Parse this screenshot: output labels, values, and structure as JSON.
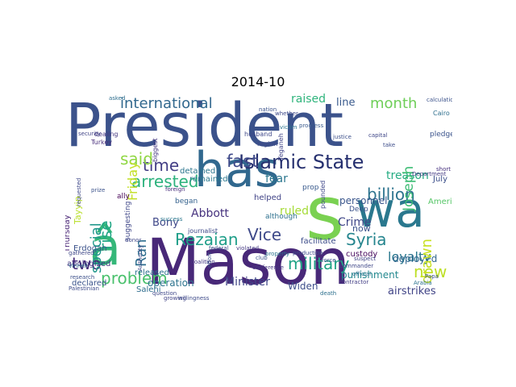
{
  "title": "2014-10",
  "words": [
    {
      "text": "President",
      "color": "#3b528b"
    },
    {
      "text": "has",
      "color": "#31688e"
    },
    {
      "text": "s",
      "color": "#7ad151"
    },
    {
      "text": "wa",
      "color": "#2a788e"
    },
    {
      "text": "â",
      "color": "#35b779"
    },
    {
      "text": "Mason",
      "color": "#482878"
    },
    {
      "text": "Islamic State",
      "color": "#26306f"
    },
    {
      "text": "international",
      "color": "#31688e"
    },
    {
      "text": "month",
      "color": "#6ece58"
    },
    {
      "text": "raised",
      "color": "#2fb47c"
    },
    {
      "text": "line",
      "color": "#38598c"
    },
    {
      "text": "fast",
      "color": "#3e4989"
    },
    {
      "text": "time",
      "color": "#433e85"
    },
    {
      "text": "said",
      "color": "#90d743"
    },
    {
      "text": "arrested",
      "color": "#2db27d"
    },
    {
      "text": "Rezaian",
      "color": "#1f9e89"
    },
    {
      "text": "Vice",
      "color": "#3e4989"
    },
    {
      "text": "problem",
      "color": "#4ac16d"
    },
    {
      "text": "two",
      "color": "#472c7a"
    },
    {
      "text": "military",
      "color": "#20a386"
    },
    {
      "text": "Syria",
      "color": "#25858e"
    },
    {
      "text": "billion",
      "color": "#2c738e"
    },
    {
      "text": "loyalty",
      "color": "#2a788e"
    },
    {
      "text": "new",
      "color": "#bddf26"
    },
    {
      "text": "Crime",
      "color": "#3f4788"
    },
    {
      "text": "treason",
      "color": "#25ac82"
    },
    {
      "text": "personnel",
      "color": "#39558c"
    },
    {
      "text": "Minister",
      "color": "#404688"
    },
    {
      "text": "operation",
      "color": "#2c738e"
    },
    {
      "text": "Abbott",
      "color": "#46327e"
    },
    {
      "text": "Bony",
      "color": "#3f4889"
    },
    {
      "text": "ruled",
      "color": "#a5db36"
    },
    {
      "text": "deployed",
      "color": "#31668e"
    },
    {
      "text": "punishment",
      "color": "#23888e"
    },
    {
      "text": "airstrikes",
      "color": "#414487"
    },
    {
      "text": "Widen",
      "color": "#3d4e8a"
    },
    {
      "text": "custody",
      "color": "#46085c"
    },
    {
      "text": "now",
      "color": "#3b528b"
    },
    {
      "text": "drawn",
      "color": "#c8e020"
    },
    {
      "text": "Joseph",
      "color": "#3dbc74"
    },
    {
      "text": "rise",
      "color": "#21a685"
    },
    {
      "text": "special",
      "color": "#1f978b"
    },
    {
      "text": "Ran",
      "color": "#2e6e8e"
    },
    {
      "text": "Friday",
      "color": "#c2df23"
    },
    {
      "text": "July",
      "color": "#3c4f8a"
    },
    {
      "text": "American",
      "color": "#56c667"
    },
    {
      "text": "fear",
      "color": "#2a768e"
    },
    {
      "text": "helped",
      "color": "#414487"
    },
    {
      "text": "released",
      "color": "#2c728e"
    },
    {
      "text": "facilitate",
      "color": "#3d4d8a"
    },
    {
      "text": "apologized",
      "color": "#443983"
    },
    {
      "text": "Erdogan",
      "color": "#3b528b"
    },
    {
      "text": "Thursday",
      "color": "#482475"
    },
    {
      "text": "Tayyip",
      "color": "#b8de29"
    },
    {
      "text": "declared",
      "color": "#3a538b"
    },
    {
      "text": "Salehi",
      "color": "#2e6d8e"
    },
    {
      "text": "dealing",
      "color": "#453882"
    },
    {
      "text": "Turkey",
      "color": "#472d7b"
    },
    {
      "text": "husband",
      "color": "#3f4889"
    },
    {
      "text": "remained",
      "color": "#2a788e"
    },
    {
      "text": "detained",
      "color": "#2b758e"
    },
    {
      "text": "began",
      "color": "#34618d"
    },
    {
      "text": "suggesting",
      "color": "#3f4788"
    },
    {
      "text": "journalist",
      "color": "#3e4a89"
    },
    {
      "text": "ally",
      "color": "#440154"
    },
    {
      "text": "Deep",
      "color": "#3b528b"
    },
    {
      "text": "prop",
      "color": "#38598c"
    },
    {
      "text": "although",
      "color": "#2d708e"
    },
    {
      "text": "region",
      "color": "#3f4889"
    },
    {
      "text": "security",
      "color": "#414487"
    },
    {
      "text": "biggest",
      "color": "#453781"
    },
    {
      "text": "research",
      "color": "#3c4f8a"
    },
    {
      "text": "Palestinian",
      "color": "#3e4c8a"
    },
    {
      "text": "Vinnell",
      "color": "#2f6c8e"
    },
    {
      "text": "gathered",
      "color": "#3f4788"
    },
    {
      "text": "Department",
      "color": "#443a83"
    },
    {
      "text": "Papa",
      "color": "#3b528b"
    },
    {
      "text": "Arabia",
      "color": "#2c718e"
    },
    {
      "text": "pledge",
      "color": "#3a538b"
    },
    {
      "text": "Cairo",
      "color": "#2e6f8e"
    },
    {
      "text": "short",
      "color": "#46307e"
    },
    {
      "text": "pounded",
      "color": "#3f4889"
    },
    {
      "text": "whether",
      "color": "#3e4a89"
    },
    {
      "text": "nation",
      "color": "#3b528b"
    },
    {
      "text": "coalition",
      "color": "#453882"
    },
    {
      "text": "force",
      "color": "#3d4e8a"
    },
    {
      "text": "suspect",
      "color": "#414487"
    },
    {
      "text": "official",
      "color": "#2d708e"
    },
    {
      "text": "commander",
      "color": "#3f4788"
    },
    {
      "text": "contractor",
      "color": "#433e85"
    },
    {
      "text": "Authority",
      "color": "#3e4a89"
    },
    {
      "text": "effort",
      "color": "#3b528b"
    },
    {
      "text": "victim",
      "color": "#2c738e"
    },
    {
      "text": "justice",
      "color": "#3c4f8a"
    },
    {
      "text": "foreign",
      "color": "#472c7a"
    },
    {
      "text": "take",
      "color": "#3d4d8a"
    },
    {
      "text": "asked",
      "color": "#2e6e8e"
    },
    {
      "text": "requested",
      "color": "#3f4889"
    },
    {
      "text": "prize",
      "color": "#3b528b"
    },
    {
      "text": "Yeganeh",
      "color": "#414487"
    },
    {
      "text": "donor",
      "color": "#3f4788"
    },
    {
      "text": "success",
      "color": "#2a788e"
    },
    {
      "text": "violated",
      "color": "#443983"
    },
    {
      "text": "production",
      "color": "#3e4c8a"
    },
    {
      "text": "death",
      "color": "#2d708e"
    },
    {
      "text": "club",
      "color": "#3b528b"
    },
    {
      "text": "question",
      "color": "#3f4889"
    },
    {
      "text": "growing",
      "color": "#414487"
    },
    {
      "text": "willingness",
      "color": "#3e4a89"
    },
    {
      "text": "conference",
      "color": "#453882"
    },
    {
      "text": "federal",
      "color": "#3d4e8a"
    },
    {
      "text": "property",
      "color": "#2c738e"
    },
    {
      "text": "capital",
      "color": "#3f4788"
    },
    {
      "text": "progress",
      "color": "#38598c"
    },
    {
      "text": "calculation",
      "color": "#3b528b"
    }
  ]
}
